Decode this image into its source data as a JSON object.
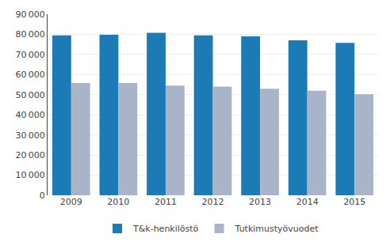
{
  "chart_data": {
    "type": "bar",
    "categories": [
      "2009",
      "2010",
      "2011",
      "2012",
      "2013",
      "2014",
      "2015"
    ],
    "series": [
      {
        "name": "T&k-henkilöstö",
        "color": "#1c7ab5",
        "values": [
          79500,
          79800,
          80800,
          79500,
          79000,
          77000,
          75800
        ]
      },
      {
        "name": "Tutkimustyövuodet",
        "color": "#aab4c8",
        "values": [
          55800,
          55800,
          54500,
          54000,
          53000,
          52000,
          50200
        ]
      }
    ],
    "ylim": [
      0,
      90000
    ],
    "yticks": [
      0,
      {
        "value": 10000,
        "label": "10 000"
      },
      {
        "value": 20000,
        "label": "20 000"
      },
      {
        "value": 30000,
        "label": "30 000"
      },
      {
        "value": 40000,
        "label": "40 000"
      },
      {
        "value": 50000,
        "label": "50 000"
      },
      {
        "value": 60000,
        "label": "60 000"
      },
      {
        "value": 70000,
        "label": "70 000"
      },
      {
        "value": 80000,
        "label": "80 000"
      },
      {
        "value": 90000,
        "label": "90 000"
      }
    ],
    "grid": true,
    "legend": "bottom"
  }
}
